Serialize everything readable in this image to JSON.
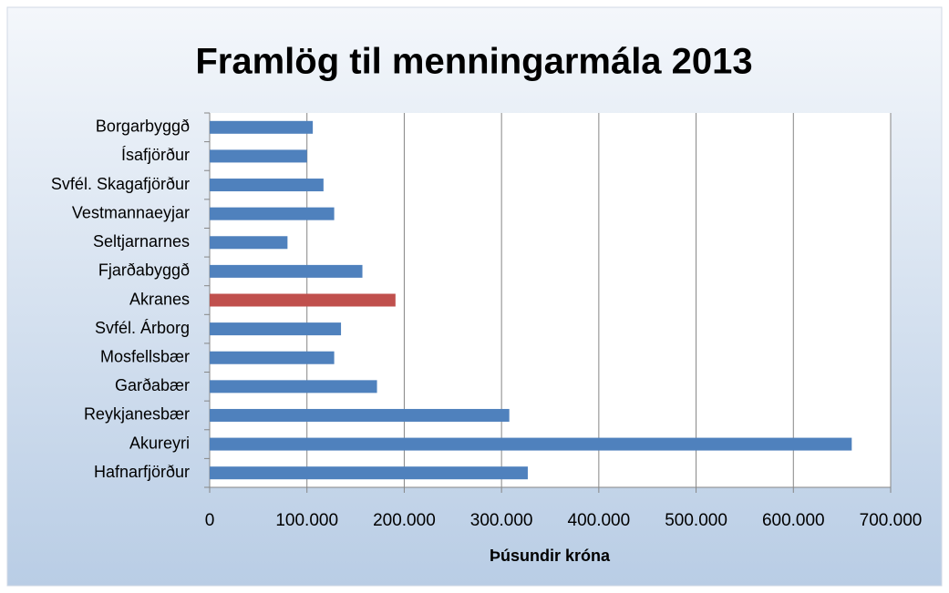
{
  "chart_data": {
    "type": "barh",
    "title": "Framlög til menningarmála 2013",
    "xlabel": "Þúsundir króna",
    "categories": [
      "Borgarbyggð",
      "Ísafjörður",
      "Svfél. Skagafjörður",
      "Vestmannaeyjar",
      "Seltjarnarnes",
      "Fjarðabyggð",
      "Akranes",
      "Svfél. Árborg",
      "Mosfellsbær",
      "Garðabær",
      "Reykjanesbær",
      "Akureyri",
      "Hafnarfjörður"
    ],
    "values": [
      106000,
      100000,
      117000,
      128000,
      80000,
      157000,
      191000,
      135000,
      128000,
      172000,
      308000,
      660000,
      327000
    ],
    "colors": [
      "#4f81bd",
      "#4f81bd",
      "#4f81bd",
      "#4f81bd",
      "#4f81bd",
      "#4f81bd",
      "#c0504d",
      "#4f81bd",
      "#4f81bd",
      "#4f81bd",
      "#4f81bd",
      "#4f81bd",
      "#4f81bd"
    ],
    "xlim": [
      0,
      700000
    ],
    "xticks": [
      0,
      {
        "value": 100000,
        "label": "100.000"
      },
      {
        "value": 200000,
        "label": "200.000"
      },
      {
        "value": 300000,
        "label": "300.000"
      },
      {
        "value": 400000,
        "label": "400.000"
      },
      {
        "value": 500000,
        "label": "500.000"
      },
      {
        "value": 600000,
        "label": "600.000"
      },
      {
        "value": 700000,
        "label": "700.000"
      }
    ],
    "grid": true
  }
}
